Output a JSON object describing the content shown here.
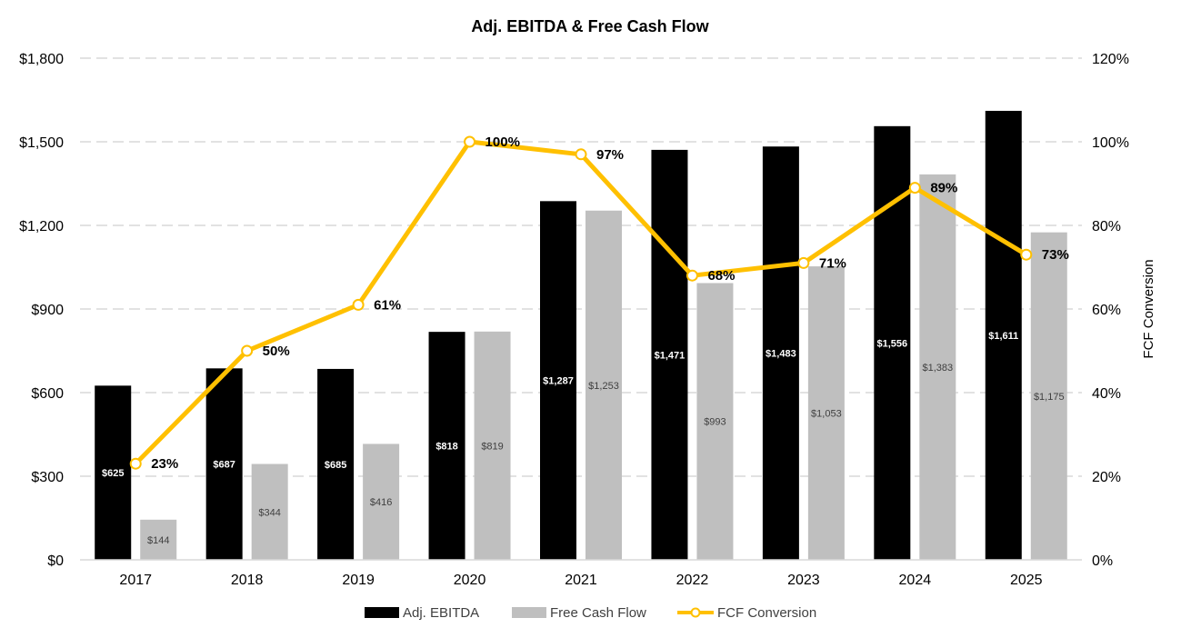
{
  "chart_data": {
    "type": "bar",
    "title": "Adj. EBITDA & Free Cash Flow",
    "categories": [
      "2017",
      "2018",
      "2019",
      "2020",
      "2021",
      "2022",
      "2023",
      "2024",
      "2025"
    ],
    "series": [
      {
        "name": "Adj. EBITDA",
        "kind": "bar",
        "axis": "left",
        "color": "#000000",
        "values": [
          625,
          687,
          685,
          818,
          1287,
          1471,
          1483,
          1556,
          1611
        ],
        "labels": [
          "$625",
          "$687",
          "$685",
          "$818",
          "$1,287",
          "$1,471",
          "$1,483",
          "$1,556",
          "$1,611"
        ]
      },
      {
        "name": "Free Cash Flow",
        "kind": "bar",
        "axis": "left",
        "color": "#bfbfbf",
        "values": [
          144,
          344,
          416,
          819,
          1253,
          993,
          1053,
          1383,
          1175
        ],
        "labels": [
          "$144",
          "$344",
          "$416",
          "$819",
          "$1,253",
          "$993",
          "$1,053",
          "$1,383",
          "$1,175"
        ]
      },
      {
        "name": "FCF Conversion",
        "kind": "line",
        "axis": "right",
        "color": "#ffc000",
        "values": [
          23,
          50,
          61,
          100,
          97,
          68,
          71,
          89,
          73
        ],
        "labels": [
          "23%",
          "50%",
          "61%",
          "100%",
          "97%",
          "68%",
          "71%",
          "89%",
          "73%"
        ]
      }
    ],
    "left_axis": {
      "min": 0,
      "max": 1800,
      "step": 300,
      "tick_labels": [
        "$0",
        "$300",
        "$600",
        "$900",
        "$1,200",
        "$1,500",
        "$1,800"
      ]
    },
    "right_axis": {
      "min": 0,
      "max": 120,
      "step": 20,
      "label": "FCF Conversion",
      "tick_labels": [
        "0%",
        "20%",
        "40%",
        "60%",
        "80%",
        "100%",
        "120%"
      ]
    },
    "grid": true,
    "legend_position": "bottom"
  }
}
